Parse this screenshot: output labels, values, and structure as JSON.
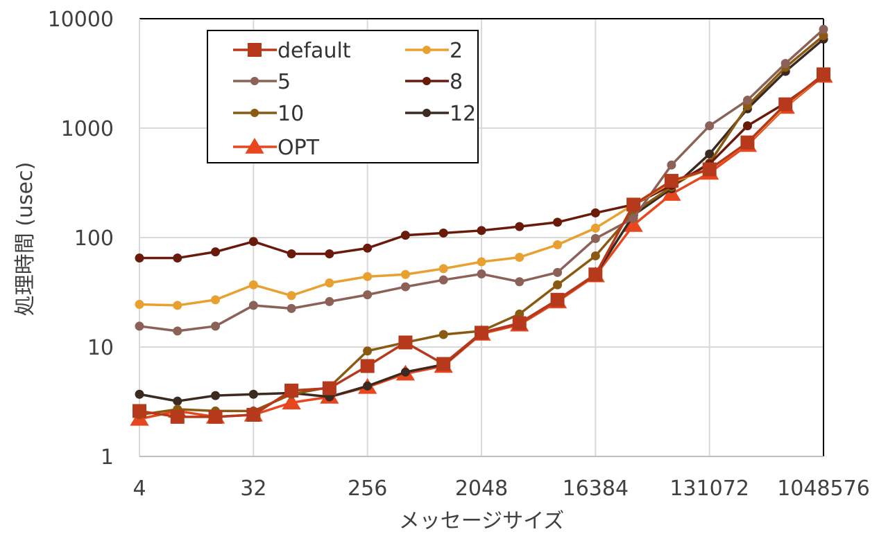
{
  "chart_data": {
    "type": "line",
    "xlabel": "メッセージサイズ",
    "ylabel": "処理時間 (usec)",
    "yscale": "log",
    "ylim": [
      1,
      10000
    ],
    "grid": true,
    "legend_position": "top-left",
    "x": [
      4,
      8,
      16,
      32,
      64,
      128,
      256,
      512,
      1024,
      2048,
      4096,
      8192,
      16384,
      32768,
      65536,
      131072,
      262144,
      524288,
      1048576
    ],
    "x_tick_labels": [
      "4",
      "32",
      "256",
      "2048",
      "16384",
      "131072",
      "1048576"
    ],
    "x_tick_values": [
      4,
      32,
      256,
      2048,
      16384,
      131072,
      1048576
    ],
    "y_tick_labels": [
      "1",
      "10",
      "100",
      "1000",
      "10000"
    ],
    "y_tick_values": [
      1,
      10,
      100,
      1000,
      10000
    ],
    "series": [
      {
        "name": "OPT",
        "color": "#e8461f",
        "marker": "triangle",
        "values": [
          2.2,
          2.6,
          2.3,
          2.4,
          3.1,
          3.5,
          4.3,
          5.7,
          6.7,
          13.2,
          16.0,
          26.0,
          45.0,
          130,
          250,
          390,
          700,
          1560,
          3000
        ]
      },
      {
        "name": "12",
        "color": "#3a2a20",
        "marker": "circle",
        "values": [
          3.7,
          3.2,
          3.6,
          3.7,
          3.8,
          3.5,
          4.4,
          5.9,
          6.9,
          13.5,
          16.5,
          27.0,
          46.0,
          160,
          280,
          580,
          1500,
          3300,
          6500
        ]
      },
      {
        "name": "10",
        "color": "#8a5a12",
        "marker": "circle",
        "values": [
          2.4,
          2.7,
          2.6,
          2.6,
          3.7,
          4.3,
          9.2,
          11.0,
          13.0,
          14.0,
          20.0,
          37.0,
          68.0,
          170,
          290,
          480,
          1600,
          3600,
          7000
        ]
      },
      {
        "name": "8",
        "color": "#6a1a0a",
        "marker": "circle",
        "values": [
          65,
          65,
          74,
          92,
          71,
          71,
          80,
          105,
          110,
          116,
          126,
          138,
          168,
          200,
          300,
          470,
          1050,
          1700,
          3000
        ]
      },
      {
        "name": "5",
        "color": "#8c6258",
        "marker": "circle",
        "values": [
          15.5,
          14.0,
          15.5,
          24.0,
          22.5,
          26.0,
          30.0,
          35.5,
          41.0,
          46.5,
          39.5,
          48.0,
          98.0,
          150,
          460,
          1050,
          1800,
          3900,
          8000
        ]
      },
      {
        "name": "2",
        "color": "#e8a030",
        "marker": "circle",
        "values": [
          24.5,
          24.0,
          27.0,
          37.0,
          29.5,
          38.5,
          44.0,
          46.0,
          52.0,
          60.0,
          66.0,
          86.0,
          122.0,
          200,
          320,
          420,
          730,
          1600,
          3100
        ]
      },
      {
        "name": "default",
        "color": "#b5391a",
        "marker": "square",
        "values": [
          2.6,
          2.3,
          2.3,
          2.4,
          4.0,
          4.2,
          6.7,
          11.0,
          7.0,
          13.5,
          16.5,
          27.0,
          46.0,
          200,
          330,
          420,
          740,
          1650,
          3100
        ]
      }
    ],
    "legend_order": [
      "default",
      "2",
      "5",
      "8",
      "10",
      "12",
      "OPT"
    ]
  }
}
